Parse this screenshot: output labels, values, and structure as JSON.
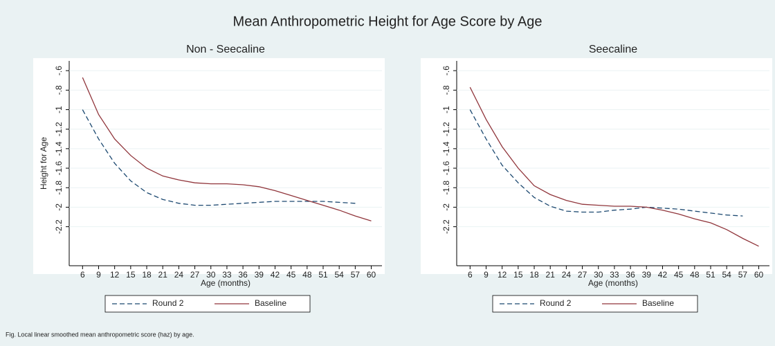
{
  "title": "Mean Anthropometric Height for Age Score by Age",
  "note": "Fig. Local linear smoothed mean anthropometric score (haz) by age.",
  "chart_data": [
    {
      "type": "line",
      "title": "Non - Seecaline",
      "x_label": "Age (months)",
      "y_label": "Height for Age",
      "x": [
        6,
        9,
        12,
        15,
        18,
        21,
        24,
        27,
        30,
        33,
        36,
        39,
        42,
        45,
        48,
        51,
        54,
        57,
        60
      ],
      "series": [
        {
          "name": "Round 2",
          "color": "#1a476f",
          "style": "dashed",
          "values": [
            -1.0,
            -1.3,
            -1.55,
            -1.73,
            -1.85,
            -1.92,
            -1.96,
            -1.98,
            -1.98,
            -1.97,
            -1.96,
            -1.95,
            -1.94,
            -1.94,
            -1.94,
            -1.94,
            -1.95,
            -1.96,
            null
          ]
        },
        {
          "name": "Baseline",
          "color": "#90353b",
          "style": "solid",
          "values": [
            -0.67,
            -1.05,
            -1.3,
            -1.47,
            -1.6,
            -1.68,
            -1.72,
            -1.75,
            -1.76,
            -1.76,
            -1.77,
            -1.79,
            -1.83,
            -1.88,
            -1.93,
            -1.98,
            -2.03,
            -2.09,
            -2.14
          ]
        }
      ],
      "xlim": [
        3.5,
        62
      ],
      "xticks": [
        6,
        9,
        12,
        15,
        18,
        21,
        24,
        27,
        30,
        33,
        36,
        39,
        42,
        45,
        48,
        51,
        54,
        57,
        60
      ],
      "ylim": [
        -2.6,
        -0.5
      ],
      "yticks": [
        {
          "value": -0.6,
          "label": "-.6"
        },
        {
          "value": -0.8,
          "label": "-.8"
        },
        -1,
        -1.2,
        -1.4,
        -1.6,
        -1.8,
        -2,
        -2.2
      ],
      "grid": true,
      "legend": "bottom"
    },
    {
      "type": "line",
      "title": "Seecaline",
      "x_label": "Age (months)",
      "y_label": null,
      "x": [
        6,
        9,
        12,
        15,
        18,
        21,
        24,
        27,
        30,
        33,
        36,
        39,
        42,
        45,
        48,
        51,
        54,
        57,
        60
      ],
      "series": [
        {
          "name": "Round 2",
          "color": "#1a476f",
          "style": "dashed",
          "values": [
            -1.0,
            -1.3,
            -1.57,
            -1.75,
            -1.9,
            -1.99,
            -2.04,
            -2.05,
            -2.05,
            -2.03,
            -2.02,
            -2.0,
            -2.01,
            -2.02,
            -2.04,
            -2.06,
            -2.08,
            -2.09,
            null
          ]
        },
        {
          "name": "Baseline",
          "color": "#90353b",
          "style": "solid",
          "values": [
            -0.77,
            -1.1,
            -1.38,
            -1.6,
            -1.78,
            -1.87,
            -1.93,
            -1.97,
            -1.98,
            -1.99,
            -1.99,
            -2.0,
            -2.03,
            -2.07,
            -2.12,
            -2.16,
            -2.23,
            -2.32,
            -2.4
          ]
        }
      ],
      "xlim": [
        3.5,
        62
      ],
      "xticks": [
        6,
        9,
        12,
        15,
        18,
        21,
        24,
        27,
        30,
        33,
        36,
        39,
        42,
        45,
        48,
        51,
        54,
        57,
        60
      ],
      "ylim": [
        -2.6,
        -0.5
      ],
      "yticks": [
        {
          "value": -0.6,
          "label": "-.6"
        },
        {
          "value": -0.8,
          "label": "-.8"
        },
        -1,
        -1.2,
        -1.4,
        -1.6,
        -1.8,
        -2,
        -2.2
      ],
      "grid": true,
      "legend": "bottom"
    }
  ]
}
